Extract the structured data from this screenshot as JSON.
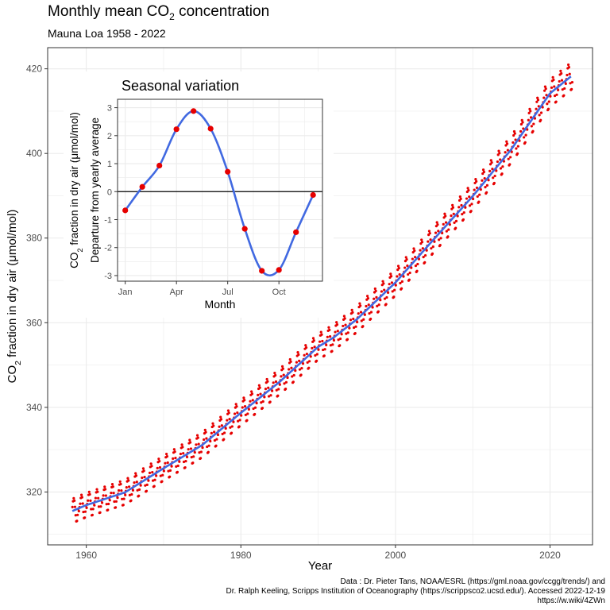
{
  "title": {
    "main": "Monthly mean CO",
    "sub": "2",
    "tail": " concentration"
  },
  "subtitle": "Mauna Loa 1958 - 2022",
  "caption": [
    "Data : Dr. Pieter Tans, NOAA/ESRL (https://gml.noaa.gov/ccgg/trends/) and",
    "Dr. Ralph Keeling, Scripps Institution of Oceanography (https://scrippsco2.ucsd.edu/). Accessed  2022-12-19",
    "https://w.wiki/4ZWn"
  ],
  "colors": {
    "points": "#e60000",
    "trend": "#4169e1",
    "grid": "#ebebeb",
    "panel_border": "#333333"
  },
  "chart_data": [
    {
      "type": "scatter",
      "title": "Monthly mean CO2 concentration",
      "xlabel": "Year",
      "ylabel": {
        "pre": "CO",
        "sub": "2",
        "post": " fraction in dry air (μmol/mol)"
      },
      "xlim": [
        1955,
        2025.5
      ],
      "ylim": [
        307.5,
        425
      ],
      "x_ticks": [
        1960,
        1980,
        2000,
        2020
      ],
      "y_ticks": [
        320,
        340,
        360,
        380,
        400,
        420
      ],
      "grid": true,
      "series": [
        {
          "style": "points",
          "description_source": "monthly means, seasonal cycle around trend",
          "trend_knots": [
            {
              "x": 1958.2,
              "y": 315.5
            },
            {
              "x": 1960,
              "y": 316.9
            },
            {
              "x": 1965,
              "y": 319.9
            },
            {
              "x": 1970,
              "y": 325.6
            },
            {
              "x": 1975,
              "y": 331.1
            },
            {
              "x": 1980,
              "y": 338.7
            },
            {
              "x": 1985,
              "y": 346.0
            },
            {
              "x": 1990,
              "y": 354.3
            },
            {
              "x": 1992,
              "y": 356.5
            },
            {
              "x": 1995,
              "y": 360.8
            },
            {
              "x": 2000,
              "y": 369.5
            },
            {
              "x": 2005,
              "y": 379.8
            },
            {
              "x": 2010,
              "y": 389.9
            },
            {
              "x": 2015,
              "y": 401.0
            },
            {
              "x": 2020,
              "y": 414.2
            },
            {
              "x": 2022.9,
              "y": 418.5
            }
          ]
        },
        {
          "style": "line",
          "description_source": "smoothed trend",
          "trend_knots_ref": "same as points"
        }
      ]
    },
    {
      "type": "line",
      "title": "Seasonal variation",
      "xlabel": "Month",
      "ylabel_lines": [
        {
          "pre": "CO",
          "sub": "2",
          "post": " fraction in dry air (μmol/mol)"
        },
        {
          "pre": "Departure from yearly average",
          "sub": "",
          "post": ""
        }
      ],
      "x": [
        1,
        2,
        3,
        4,
        5,
        6,
        7,
        8,
        9,
        10,
        11,
        12
      ],
      "x_tick_values": [
        1,
        4,
        7,
        10
      ],
      "x_tick_labels": [
        "Jan",
        "Apr",
        "Jul",
        "Oct"
      ],
      "y_ticks": [
        -3,
        -2,
        -1,
        0,
        1,
        2,
        3
      ],
      "xlim": [
        0.55,
        12.55
      ],
      "ylim": [
        -3.2,
        3.3
      ],
      "values": [
        -0.67,
        0.17,
        0.93,
        2.23,
        2.88,
        2.25,
        0.71,
        -1.33,
        -2.83,
        -2.8,
        -1.45,
        -0.12
      ],
      "grid": true,
      "zero_line": true
    }
  ]
}
